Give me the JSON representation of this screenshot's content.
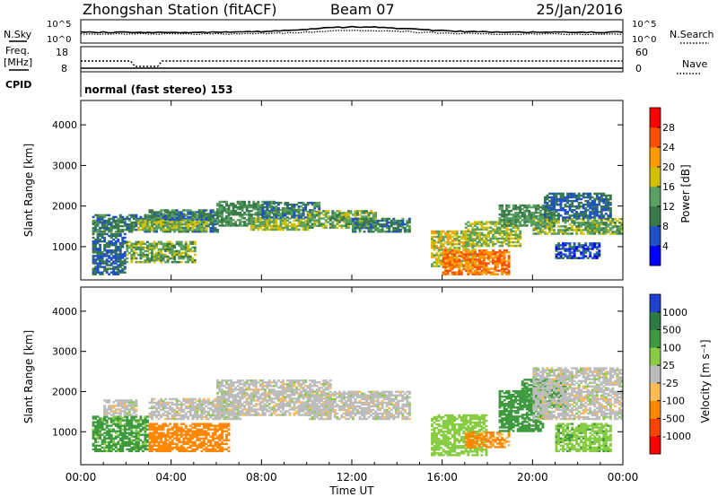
{
  "header": {
    "title": "Zhongshan Station (fitACF)",
    "beam": "Beam 07",
    "date": "25/Jan/2016"
  },
  "sky_panel": {
    "left_label": "N.Sky",
    "right_label": "N.Search",
    "ticks": [
      "10^5",
      "10^0"
    ]
  },
  "freq_panel": {
    "left_label_line1": "Freq.",
    "left_label_line2": "[MHz]",
    "left_ticks": [
      "18",
      "8"
    ],
    "right_label": "Nave",
    "right_ticks": [
      "60",
      "0"
    ]
  },
  "cpid_panel": {
    "label": "CPID",
    "text": "normal (fast stereo) 153"
  },
  "power_panel": {
    "ylabel": "Slant Range [km]",
    "cbar_label": "Power [dB]",
    "cbar_ticks": [
      "28",
      "24",
      "20",
      "16",
      "12",
      "8",
      "4"
    ],
    "cbar_colors": [
      "#0000ff",
      "#1f50c8",
      "#3a7a4a",
      "#5aa060",
      "#d2c000",
      "#ff9a00",
      "#ff5000",
      "#ff0000"
    ]
  },
  "velocity_panel": {
    "ylabel": "Slant Range [km]",
    "cbar_label": "Velocity [m s⁻¹]",
    "cbar_ticks": [
      "1000",
      "500",
      "100",
      "25",
      "-25",
      "-100",
      "-500",
      "-1000"
    ],
    "cbar_colors": [
      "#2040d0",
      "#2d7a42",
      "#3f9a3f",
      "#88cc44",
      "#bcbcbc",
      "#ffbb55",
      "#ff8800",
      "#ff4400",
      "#ff0000"
    ]
  },
  "x_axis": {
    "label": "Time UT",
    "ticks": [
      "00:00",
      "04:00",
      "08:00",
      "12:00",
      "16:00",
      "20:00",
      "00:00"
    ]
  },
  "chart_data": [
    {
      "type": "heatmap",
      "name": "Power",
      "x_range_hours": [
        0,
        24
      ],
      "y_range_km": [
        180,
        4600
      ],
      "ylabel": "Slant Range [km]",
      "yticks": [
        1000,
        2000,
        3000,
        4000
      ],
      "color_range": [
        0,
        30
      ],
      "cells": [
        [
          0.5,
          6.0,
          1350,
          1800,
          10
        ],
        [
          0.5,
          2.0,
          300,
          1300,
          8
        ],
        [
          2.0,
          5.0,
          600,
          1100,
          14
        ],
        [
          2.5,
          5.5,
          1400,
          1650,
          16
        ],
        [
          3.0,
          6.0,
          1650,
          1900,
          10
        ],
        [
          6.0,
          8.5,
          1500,
          2100,
          12
        ],
        [
          7.5,
          10.0,
          1400,
          1700,
          16
        ],
        [
          8.0,
          10.5,
          1700,
          2100,
          10
        ],
        [
          10.0,
          13.0,
          1450,
          1900,
          14
        ],
        [
          12.0,
          14.5,
          1350,
          1700,
          10
        ],
        [
          15.5,
          17.5,
          500,
          1400,
          18
        ],
        [
          16.0,
          19.0,
          300,
          900,
          24
        ],
        [
          17.0,
          19.5,
          1000,
          1600,
          16
        ],
        [
          18.5,
          21.0,
          1500,
          2000,
          12
        ],
        [
          20.0,
          24.0,
          1300,
          1700,
          14
        ],
        [
          20.5,
          23.5,
          1700,
          2300,
          8
        ],
        [
          21.0,
          23.0,
          700,
          1100,
          6
        ]
      ]
    },
    {
      "type": "heatmap",
      "name": "Velocity",
      "x_range_hours": [
        0,
        24
      ],
      "y_range_km": [
        180,
        4600
      ],
      "ylabel": "Slant Range [km]",
      "yticks": [
        1000,
        2000,
        3000,
        4000
      ],
      "color_range": [
        -1000,
        1000
      ],
      "cells": [
        [
          0.5,
          3.0,
          500,
          1400,
          120
        ],
        [
          1.0,
          2.5,
          1400,
          1800,
          0
        ],
        [
          3.0,
          6.5,
          500,
          1200,
          -300
        ],
        [
          3.0,
          7.0,
          1300,
          1800,
          0
        ],
        [
          6.0,
          11.0,
          1400,
          2300,
          0
        ],
        [
          10.0,
          14.5,
          1300,
          2000,
          0
        ],
        [
          15.5,
          18.0,
          400,
          1400,
          60
        ],
        [
          17.0,
          19.0,
          600,
          1000,
          -120
        ],
        [
          18.5,
          20.5,
          1000,
          2000,
          150
        ],
        [
          19.5,
          21.5,
          1600,
          2300,
          300
        ],
        [
          20.0,
          24.0,
          1300,
          2600,
          0
        ],
        [
          21.0,
          23.5,
          500,
          1200,
          80
        ]
      ]
    }
  ]
}
